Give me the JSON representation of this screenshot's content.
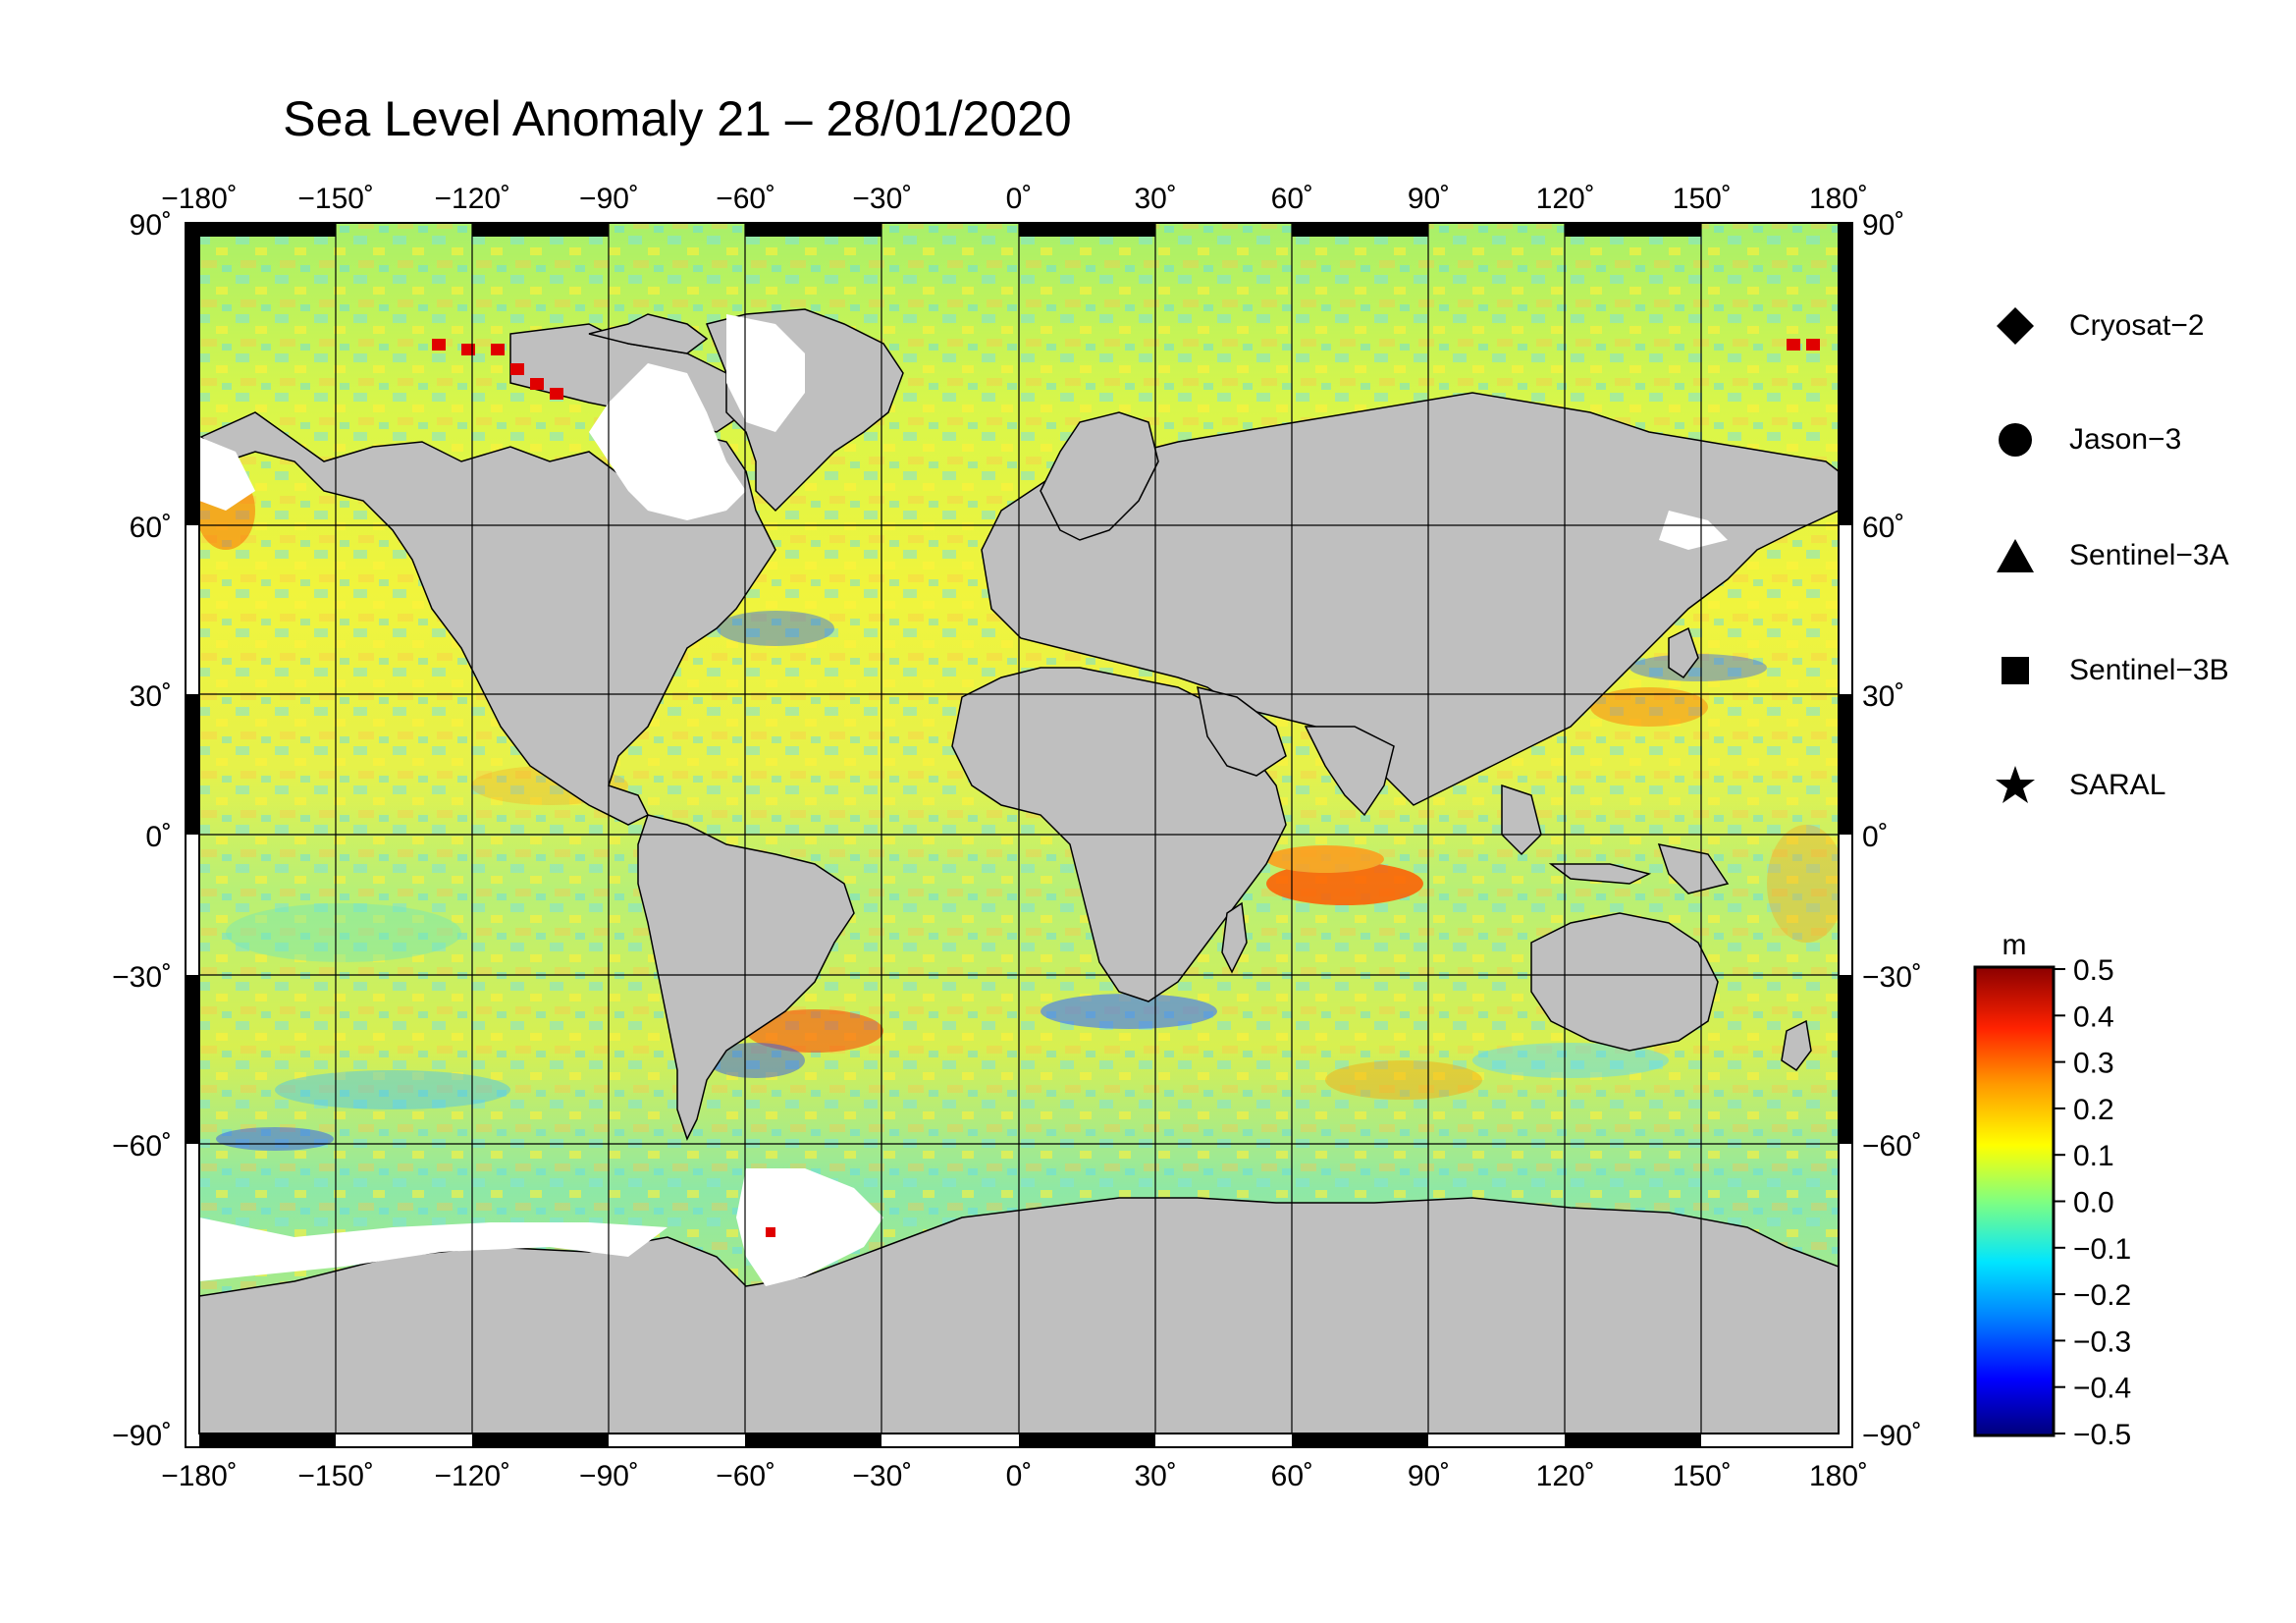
{
  "title": "Sea Level Anomaly 21 – 28/01/2020",
  "longitude_ticks": [
    "−180˚",
    "−150˚",
    "−120˚",
    "−90˚",
    "−60˚",
    "−30˚",
    "0˚",
    "30˚",
    "60˚",
    "90˚",
    "120˚",
    "150˚",
    "180˚"
  ],
  "latitude_ticks_left": [
    "90˚",
    "60˚",
    "30˚",
    "0˚",
    "−30˚",
    "−60˚",
    "−90˚"
  ],
  "latitude_ticks_right": [
    "90˚",
    "60˚",
    "30˚",
    "0˚",
    "−30˚",
    "−60˚",
    "−90˚"
  ],
  "legend": {
    "items": [
      {
        "label": "Cryosat−2",
        "symbol": "diamond-icon"
      },
      {
        "label": "Jason−3",
        "symbol": "circle-icon"
      },
      {
        "label": "Sentinel−3A",
        "symbol": "triangle-icon"
      },
      {
        "label": "Sentinel−3B",
        "symbol": "square-icon"
      },
      {
        "label": "SARAL",
        "symbol": "star-icon"
      }
    ]
  },
  "colorbar": {
    "unit": "m",
    "labels": [
      "0.5",
      "0.4",
      "0.3",
      "0.2",
      "0.1",
      "0.0",
      "−0.1",
      "−0.2",
      "−0.3",
      "−0.4",
      "−0.5"
    ],
    "min": -0.5,
    "max": 0.5,
    "colors": [
      "#00007a",
      "#0000ff",
      "#0080ff",
      "#00e5ff",
      "#80ff80",
      "#ffff00",
      "#ff9900",
      "#ff2200",
      "#8b0000"
    ]
  },
  "colors": {
    "land": "#bfbfbf",
    "ice": "#ffffff",
    "frame": "#000000"
  }
}
